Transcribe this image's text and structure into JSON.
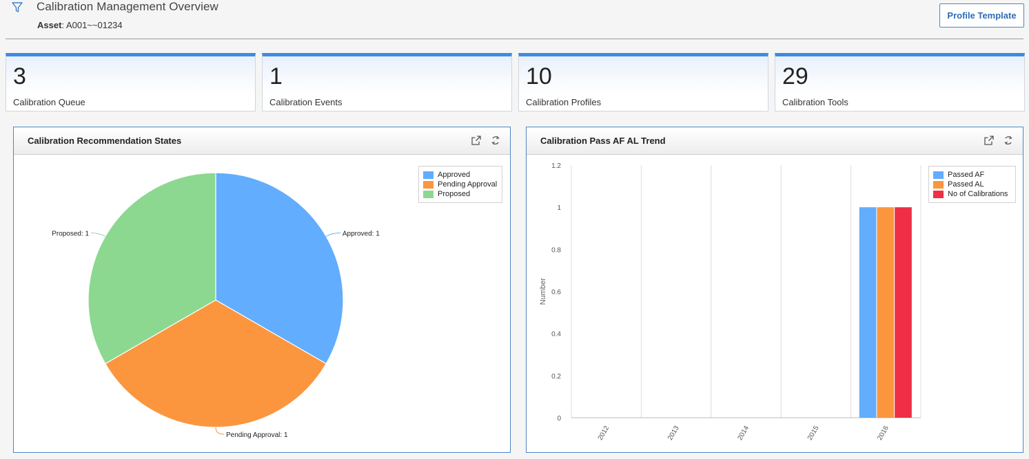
{
  "header": {
    "title": "Calibration Management Overview",
    "asset_label": "Asset",
    "asset_value": "A001~~01234",
    "profile_button": "Profile Template"
  },
  "kpis": [
    {
      "value": "3",
      "label": "Calibration Queue"
    },
    {
      "value": "1",
      "label": "Calibration Events"
    },
    {
      "value": "10",
      "label": "Calibration Profiles"
    },
    {
      "value": "29",
      "label": "Calibration Tools"
    }
  ],
  "colors": {
    "accent": "#3e8be0",
    "blue": "#62adfd",
    "orange": "#fb963e",
    "green": "#8cd891",
    "red": "#ee2f45"
  },
  "icons": {
    "filter": "filter-icon",
    "expand": "external-link-icon",
    "refresh": "refresh-icon"
  },
  "panels": {
    "pie": {
      "title": "Calibration Recommendation States"
    },
    "bar": {
      "title": "Calibration Pass AF AL Trend"
    }
  },
  "chart_data": [
    {
      "type": "pie",
      "title": "Calibration Recommendation States",
      "categories": [
        "Approved",
        "Pending Approval",
        "Proposed"
      ],
      "values": [
        1,
        1,
        1
      ],
      "colors": [
        "#62adfd",
        "#fb963e",
        "#8cd891"
      ],
      "data_labels": [
        "Approved: 1",
        "Pending Approval: 1",
        "Proposed: 1"
      ],
      "legend": "top-right"
    },
    {
      "type": "bar",
      "title": "Calibration Pass AF AL Trend",
      "categories": [
        "2012",
        "2013",
        "2014",
        "2015",
        "2016"
      ],
      "series": [
        {
          "name": "Passed AF",
          "values": [
            0,
            0,
            0,
            0,
            1
          ],
          "color": "#62adfd"
        },
        {
          "name": "Passed AL",
          "values": [
            0,
            0,
            0,
            0,
            1
          ],
          "color": "#fb963e"
        },
        {
          "name": "No of Calibrations",
          "values": [
            0,
            0,
            0,
            0,
            1
          ],
          "color": "#ee2f45"
        }
      ],
      "ylabel": "Number",
      "ylim": [
        0,
        1.2
      ],
      "yticks": [
        "0",
        "0.2",
        "0.4",
        "0.6",
        "0.8",
        "1",
        "1.2"
      ],
      "grid": "vertical",
      "legend": "top-right"
    }
  ]
}
